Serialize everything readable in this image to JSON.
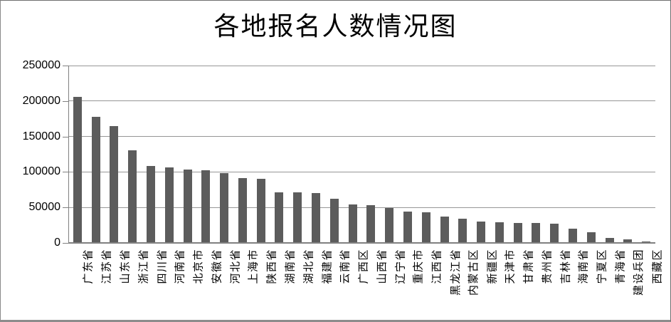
{
  "chart_data": {
    "type": "bar",
    "title": "各地报名人数情况图",
    "categories": [
      "广东省",
      "江苏省",
      "山东省",
      "浙江省",
      "四川省",
      "河南省",
      "北京市",
      "安徽省",
      "河北省",
      "上海市",
      "陕西省",
      "湖南省",
      "湖北省",
      "福建省",
      "云南省",
      "广西区",
      "山西省",
      "辽宁省",
      "重庆市",
      "江西省",
      "黑龙江省",
      "内蒙古区",
      "新疆区",
      "天津市",
      "甘肃省",
      "贵州省",
      "吉林省",
      "海南省",
      "宁夏区",
      "青海省",
      "建设兵团",
      "西藏区"
    ],
    "values": [
      204500,
      177000,
      164000,
      130000,
      107000,
      105000,
      102000,
      101000,
      97000,
      90000,
      89000,
      70500,
      70000,
      69000,
      61000,
      53000,
      52500,
      48000,
      43000,
      42000,
      36000,
      33000,
      29000,
      28000,
      27000,
      27000,
      26000,
      19000,
      14000,
      6000,
      4500,
      1200
    ],
    "xlabel": "",
    "ylabel": "",
    "ylim": [
      0,
      250000
    ],
    "yticks": [
      0,
      50000,
      100000,
      150000,
      200000,
      250000
    ],
    "ytick_labels": [
      "0",
      "50000",
      "100000",
      "150000",
      "200000",
      "250000"
    ],
    "grid": true,
    "legend": false,
    "colors": {
      "bar": "#5c5c5c",
      "gridline": "#969696",
      "axis": "#808080",
      "text": "#000000",
      "background": "#ffffff"
    }
  }
}
